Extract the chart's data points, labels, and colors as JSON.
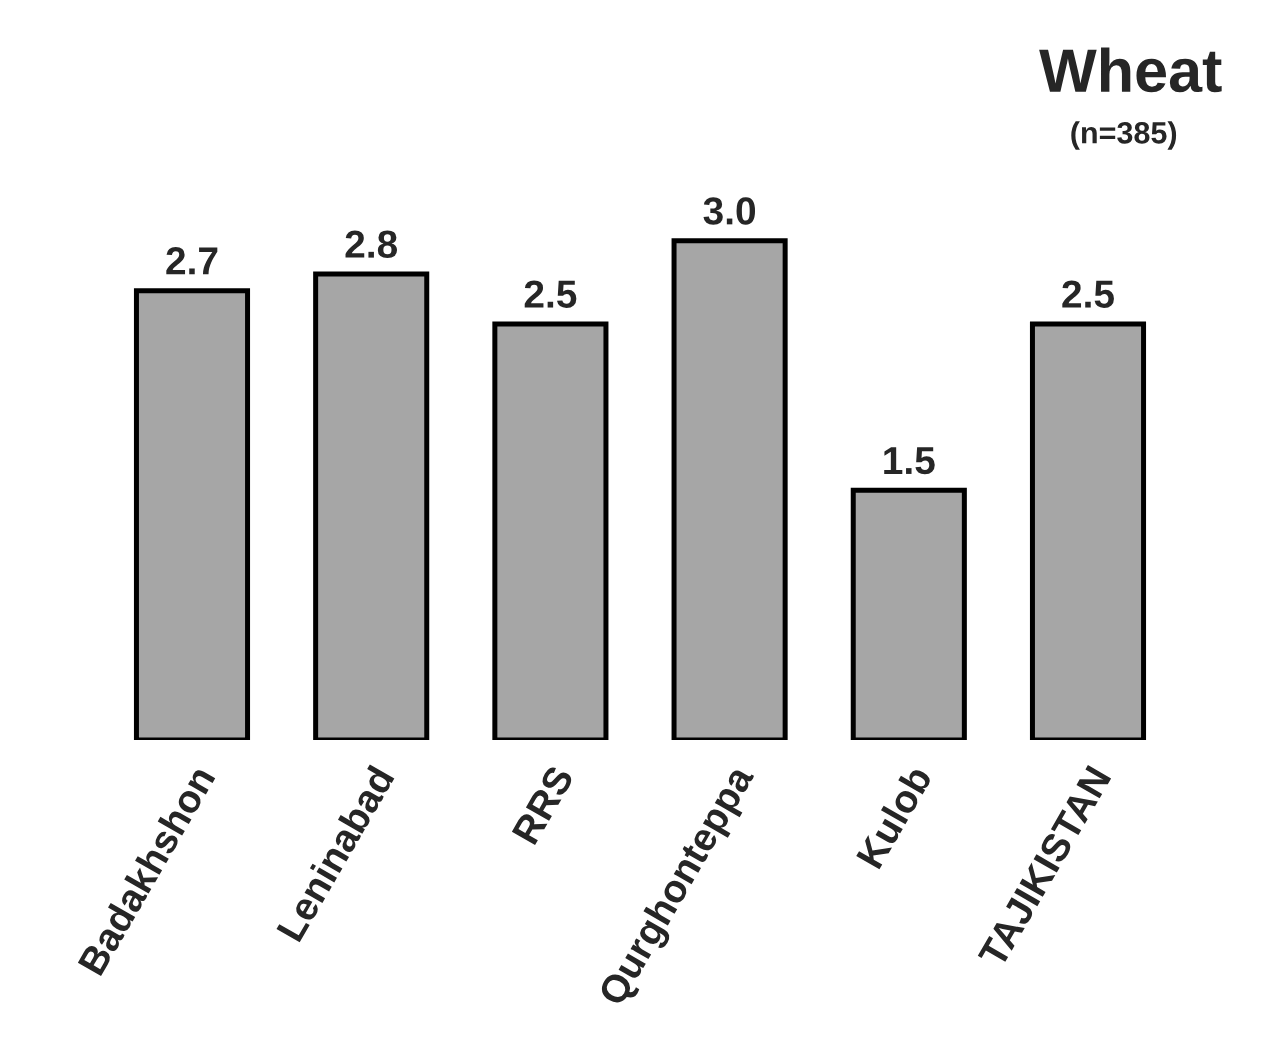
{
  "chart_data": {
    "type": "bar",
    "title": "Wheat",
    "subtitle": "(n=385)",
    "categories": [
      "Badakhshon",
      "Leninabad",
      "RRS",
      "Qurghonteppa",
      "Kulob",
      "TAJIKISTAN"
    ],
    "values": [
      2.7,
      2.8,
      2.5,
      3.0,
      1.5,
      2.5
    ],
    "value_labels": [
      "2.7",
      "2.8",
      "2.5",
      "3.0",
      "1.5",
      "2.5"
    ],
    "color": "#a6a6a6",
    "grid": false,
    "legend": false
  }
}
